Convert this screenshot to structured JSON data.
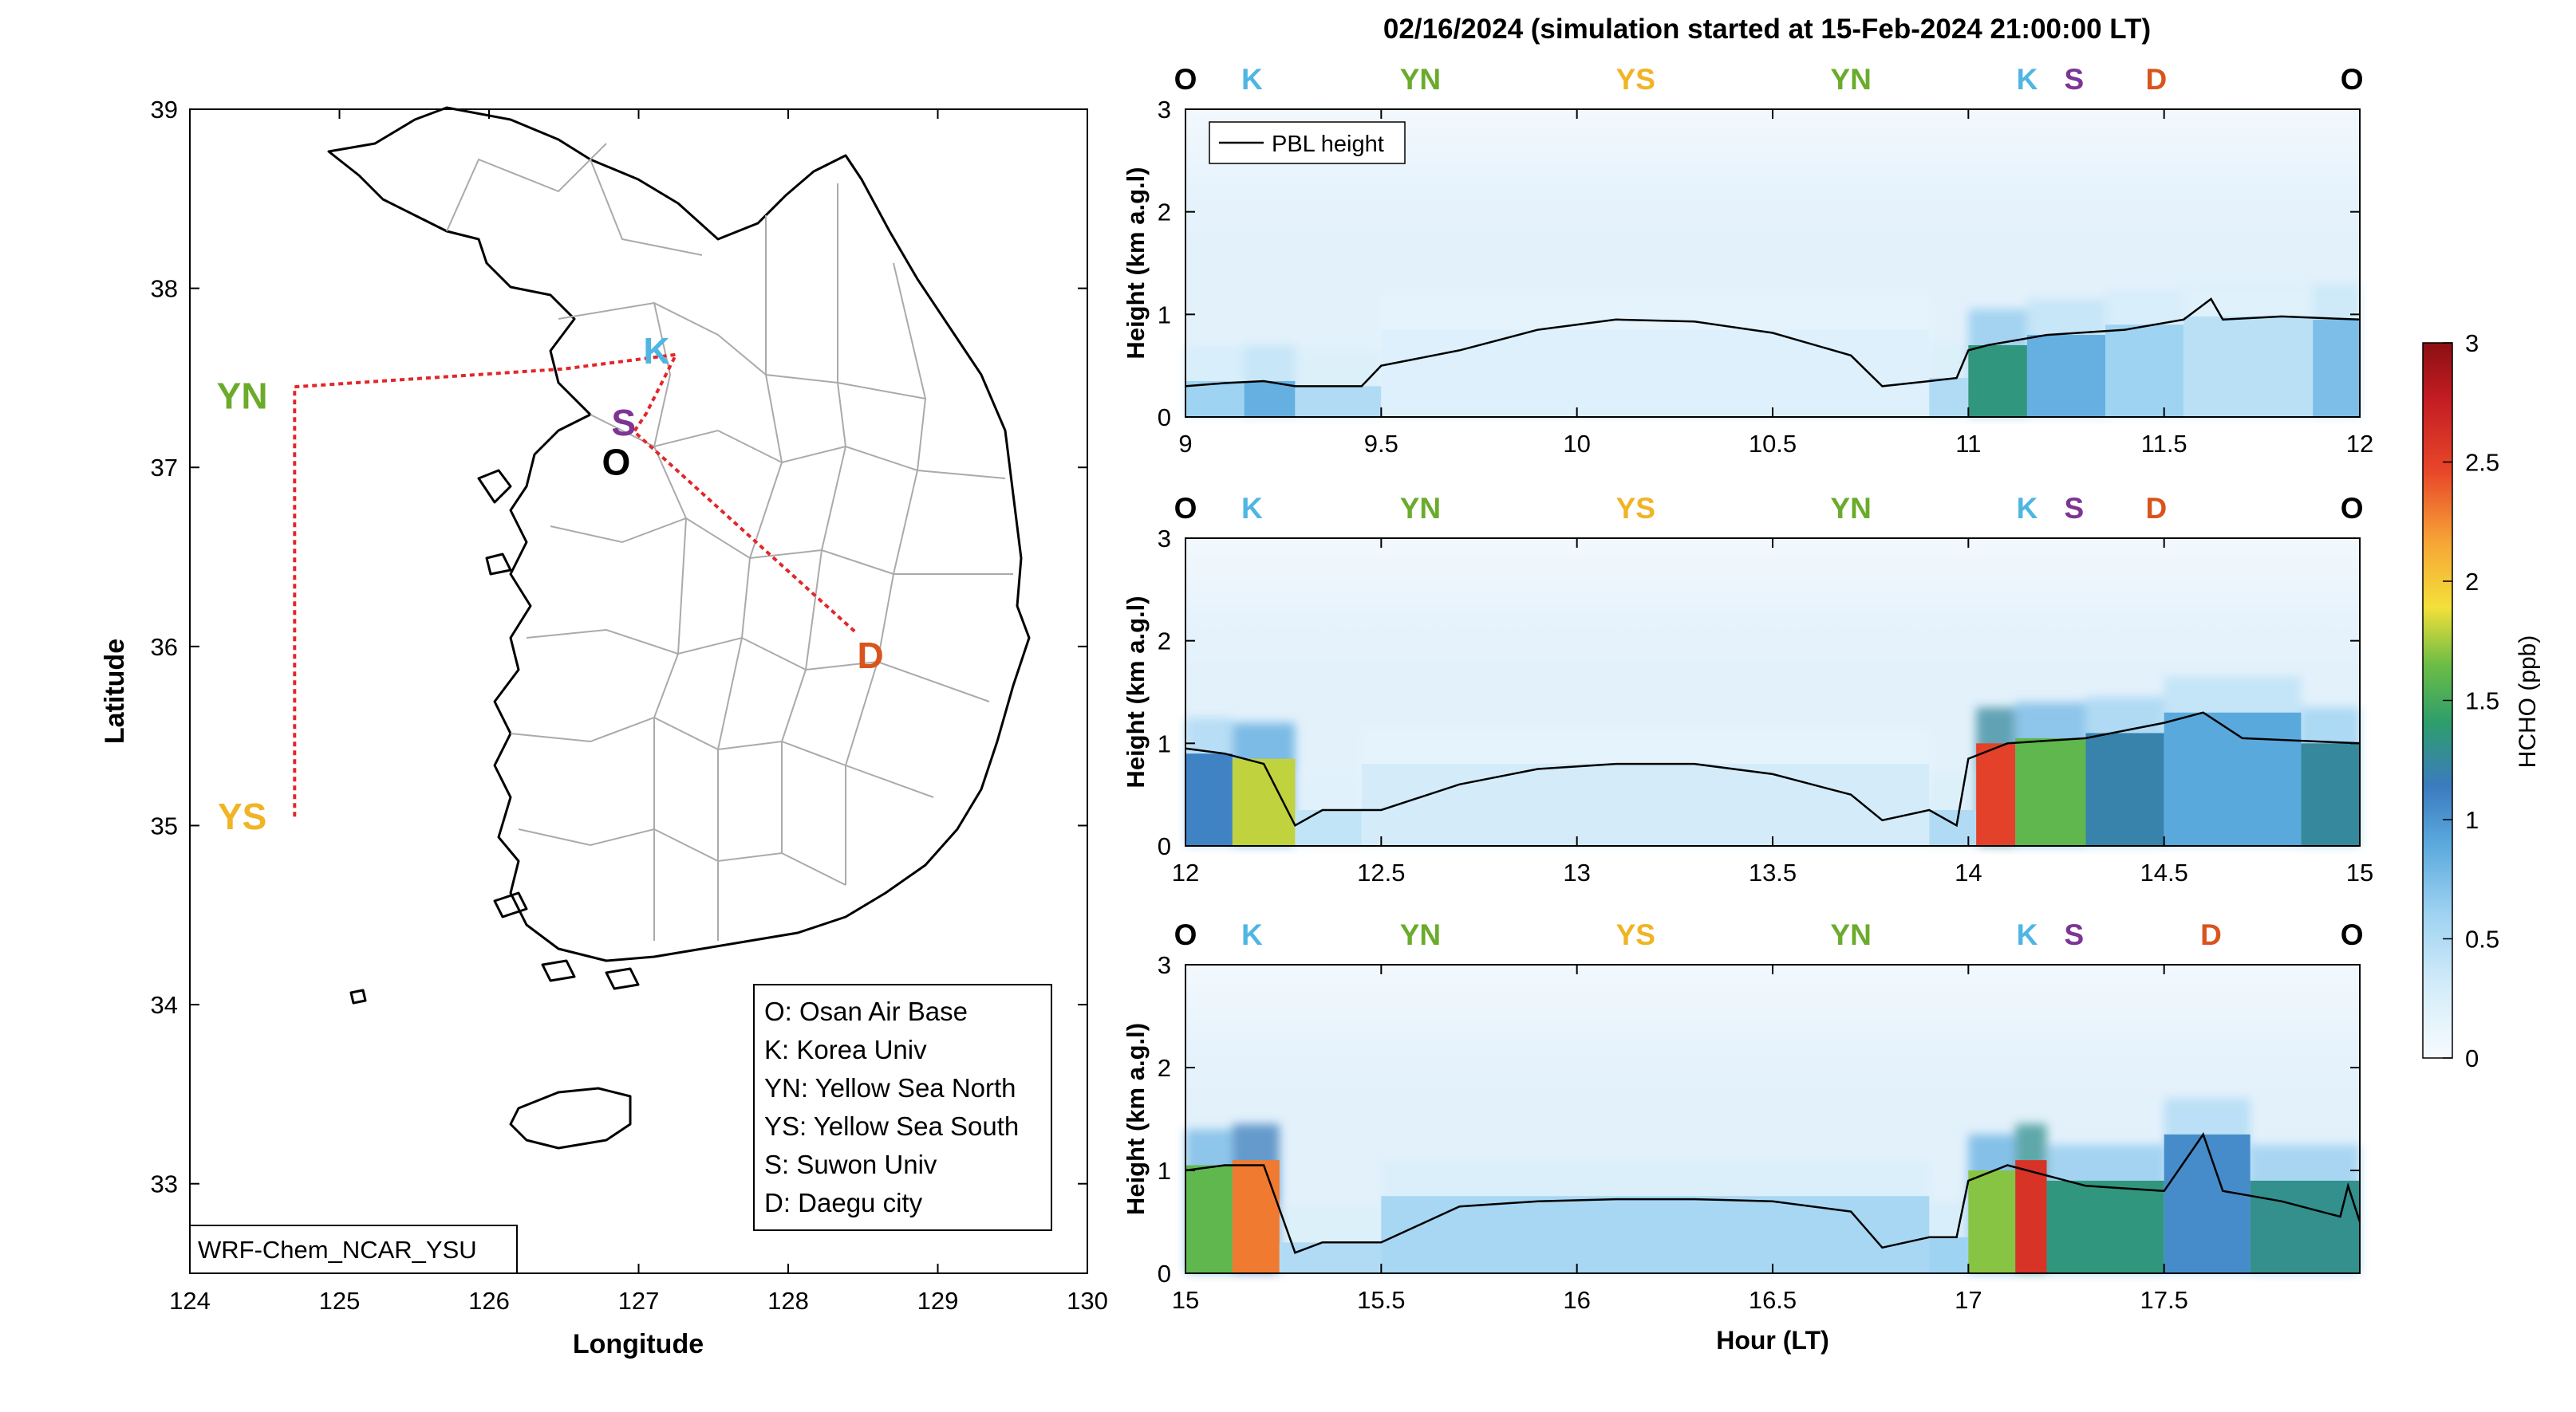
{
  "figure_title": "02/16/2024 (simulation started at 15-Feb-2024 21:00:00 LT)",
  "colors": {
    "O": "#000000",
    "K": "#4fb6e3",
    "YN": "#6bab2c",
    "YS": "#f0b425",
    "S": "#7d3594",
    "D": "#d9541c",
    "track": "#e3262a",
    "pbl": "#000000"
  },
  "map": {
    "xlabel": "Longitude",
    "ylabel": "Latitude",
    "xlim": [
      124,
      130
    ],
    "ylim": [
      32.5,
      39
    ],
    "xticks": [
      "124",
      "125",
      "126",
      "127",
      "128",
      "129",
      "130"
    ],
    "yticks": [
      "33",
      "34",
      "35",
      "36",
      "37",
      "38",
      "39"
    ],
    "model_label": "WRF-Chem_NCAR_YSU",
    "site_labels": [
      {
        "code": "YN",
        "lon": 124.35,
        "lat": 37.4
      },
      {
        "code": "YS",
        "lon": 124.35,
        "lat": 35.05
      },
      {
        "code": "K",
        "lon": 127.12,
        "lat": 37.65
      },
      {
        "code": "S",
        "lon": 126.9,
        "lat": 37.25
      },
      {
        "code": "O",
        "lon": 126.85,
        "lat": 37.03
      },
      {
        "code": "D",
        "lon": 128.55,
        "lat": 35.95
      }
    ],
    "flight_track": [
      [
        124.7,
        35.05
      ],
      [
        124.7,
        37.45
      ],
      [
        126.5,
        37.55
      ],
      [
        127.25,
        37.63
      ],
      [
        127.05,
        37.3
      ],
      [
        126.97,
        37.2
      ],
      [
        128.45,
        36.08
      ]
    ],
    "legend": [
      "O: Osan Air Base",
      "K: Korea Univ",
      "YN: Yellow Sea North",
      "YS: Yellow Sea South",
      "S: Suwon Univ",
      "D: Daegu city"
    ]
  },
  "chart_data": [
    {
      "type": "heatmap",
      "xlabel": "",
      "ylabel": "Height (km a.g.l)",
      "xlim": [
        9,
        12
      ],
      "ylim": [
        0,
        3
      ],
      "xticks": [
        "9",
        "9.5",
        "10",
        "10.5",
        "11",
        "11.5",
        "12"
      ],
      "yticks": [
        "0",
        "1",
        "2",
        "3"
      ],
      "legend": "PBL height",
      "site_markers": [
        {
          "code": "O",
          "x": 9.0
        },
        {
          "code": "K",
          "x": 9.17
        },
        {
          "code": "YN",
          "x": 9.6
        },
        {
          "code": "YS",
          "x": 10.15
        },
        {
          "code": "YN",
          "x": 10.7
        },
        {
          "code": "K",
          "x": 11.15
        },
        {
          "code": "S",
          "x": 11.27
        },
        {
          "code": "D",
          "x": 11.48
        },
        {
          "code": "O",
          "x": 11.98
        }
      ],
      "pbl_height": [
        [
          9.0,
          0.3
        ],
        [
          9.1,
          0.33
        ],
        [
          9.2,
          0.35
        ],
        [
          9.28,
          0.3
        ],
        [
          9.45,
          0.3
        ],
        [
          9.5,
          0.5
        ],
        [
          9.7,
          0.65
        ],
        [
          9.9,
          0.85
        ],
        [
          10.1,
          0.95
        ],
        [
          10.3,
          0.93
        ],
        [
          10.5,
          0.82
        ],
        [
          10.7,
          0.6
        ],
        [
          10.78,
          0.3
        ],
        [
          10.9,
          0.35
        ],
        [
          10.97,
          0.38
        ],
        [
          11.0,
          0.65
        ],
        [
          11.05,
          0.7
        ],
        [
          11.2,
          0.8
        ],
        [
          11.4,
          0.85
        ],
        [
          11.55,
          0.95
        ],
        [
          11.62,
          1.15
        ],
        [
          11.65,
          0.95
        ],
        [
          11.8,
          0.98
        ],
        [
          12.0,
          0.95
        ]
      ],
      "hcho_columns": [
        {
          "x0": 9.0,
          "x1": 9.15,
          "hcho": 0.6,
          "top": 0.35
        },
        {
          "x0": 9.15,
          "x1": 9.28,
          "hcho": 0.85,
          "top": 0.35
        },
        {
          "x0": 9.28,
          "x1": 9.5,
          "hcho": 0.5,
          "top": 0.3
        },
        {
          "x0": 9.5,
          "x1": 10.9,
          "hcho": 0.22,
          "top": 0.85
        },
        {
          "x0": 10.9,
          "x1": 11.0,
          "hcho": 0.5,
          "top": 0.38
        },
        {
          "x0": 11.0,
          "x1": 11.15,
          "hcho": 1.35,
          "top": 0.7
        },
        {
          "x0": 11.15,
          "x1": 11.35,
          "hcho": 0.85,
          "top": 0.8
        },
        {
          "x0": 11.35,
          "x1": 11.55,
          "hcho": 0.6,
          "top": 0.9
        },
        {
          "x0": 11.55,
          "x1": 11.88,
          "hcho": 0.45,
          "top": 0.98
        },
        {
          "x0": 11.88,
          "x1": 12.0,
          "hcho": 0.75,
          "top": 0.95
        }
      ]
    },
    {
      "type": "heatmap",
      "xlabel": "",
      "ylabel": "Height (km a.g.l)",
      "xlim": [
        12,
        15
      ],
      "ylim": [
        0,
        3
      ],
      "xticks": [
        "12",
        "12.5",
        "13",
        "13.5",
        "14",
        "14.5",
        "15"
      ],
      "yticks": [
        "0",
        "1",
        "2",
        "3"
      ],
      "site_markers": [
        {
          "code": "O",
          "x": 12.0
        },
        {
          "code": "K",
          "x": 12.17
        },
        {
          "code": "YN",
          "x": 12.6
        },
        {
          "code": "YS",
          "x": 13.15
        },
        {
          "code": "YN",
          "x": 13.7
        },
        {
          "code": "K",
          "x": 14.15
        },
        {
          "code": "S",
          "x": 14.27
        },
        {
          "code": "D",
          "x": 14.48
        },
        {
          "code": "O",
          "x": 14.98
        }
      ],
      "pbl_height": [
        [
          12.0,
          0.95
        ],
        [
          12.1,
          0.9
        ],
        [
          12.2,
          0.8
        ],
        [
          12.28,
          0.2
        ],
        [
          12.35,
          0.35
        ],
        [
          12.5,
          0.35
        ],
        [
          12.7,
          0.6
        ],
        [
          12.9,
          0.75
        ],
        [
          13.1,
          0.8
        ],
        [
          13.3,
          0.8
        ],
        [
          13.5,
          0.7
        ],
        [
          13.7,
          0.5
        ],
        [
          13.78,
          0.25
        ],
        [
          13.9,
          0.35
        ],
        [
          13.97,
          0.2
        ],
        [
          14.0,
          0.85
        ],
        [
          14.1,
          1.0
        ],
        [
          14.3,
          1.05
        ],
        [
          14.5,
          1.2
        ],
        [
          14.6,
          1.3
        ],
        [
          14.7,
          1.05
        ],
        [
          15.0,
          1.0
        ]
      ],
      "hcho_columns": [
        {
          "x0": 12.0,
          "x1": 12.12,
          "hcho": 1.1,
          "top": 0.9
        },
        {
          "x0": 12.12,
          "x1": 12.28,
          "hcho": 1.8,
          "top": 0.85
        },
        {
          "x0": 12.28,
          "x1": 12.45,
          "hcho": 0.4,
          "top": 0.35
        },
        {
          "x0": 12.45,
          "x1": 13.9,
          "hcho": 0.3,
          "top": 0.8
        },
        {
          "x0": 13.9,
          "x1": 14.02,
          "hcho": 0.5,
          "top": 0.35
        },
        {
          "x0": 14.02,
          "x1": 14.12,
          "hcho": 2.5,
          "top": 1.0
        },
        {
          "x0": 14.12,
          "x1": 14.3,
          "hcho": 1.6,
          "top": 1.05
        },
        {
          "x0": 14.3,
          "x1": 14.5,
          "hcho": 1.2,
          "top": 1.1
        },
        {
          "x0": 14.5,
          "x1": 14.85,
          "hcho": 0.9,
          "top": 1.3
        },
        {
          "x0": 14.85,
          "x1": 15.0,
          "hcho": 1.25,
          "top": 1.0
        }
      ]
    },
    {
      "type": "heatmap",
      "xlabel": "Hour (LT)",
      "ylabel": "Height (km a.g.l)",
      "xlim": [
        15,
        18
      ],
      "ylim": [
        0,
        3
      ],
      "xticks": [
        "15",
        "15.5",
        "16",
        "16.5",
        "17",
        "17.5"
      ],
      "yticks": [
        "0",
        "1",
        "2",
        "3"
      ],
      "site_markers": [
        {
          "code": "O",
          "x": 15.0
        },
        {
          "code": "K",
          "x": 15.17
        },
        {
          "code": "YN",
          "x": 15.6
        },
        {
          "code": "YS",
          "x": 16.15
        },
        {
          "code": "YN",
          "x": 16.7
        },
        {
          "code": "K",
          "x": 17.15
        },
        {
          "code": "S",
          "x": 17.27
        },
        {
          "code": "D",
          "x": 17.62
        },
        {
          "code": "O",
          "x": 17.98
        }
      ],
      "pbl_height": [
        [
          15.0,
          1.0
        ],
        [
          15.1,
          1.05
        ],
        [
          15.2,
          1.05
        ],
        [
          15.28,
          0.2
        ],
        [
          15.35,
          0.3
        ],
        [
          15.5,
          0.3
        ],
        [
          15.7,
          0.65
        ],
        [
          15.9,
          0.7
        ],
        [
          16.1,
          0.72
        ],
        [
          16.3,
          0.72
        ],
        [
          16.5,
          0.7
        ],
        [
          16.7,
          0.6
        ],
        [
          16.78,
          0.25
        ],
        [
          16.9,
          0.35
        ],
        [
          16.97,
          0.35
        ],
        [
          17.0,
          0.9
        ],
        [
          17.1,
          1.05
        ],
        [
          17.3,
          0.85
        ],
        [
          17.5,
          0.8
        ],
        [
          17.6,
          1.35
        ],
        [
          17.65,
          0.8
        ],
        [
          17.8,
          0.7
        ],
        [
          17.95,
          0.55
        ],
        [
          17.97,
          0.85
        ],
        [
          18.0,
          0.5
        ]
      ],
      "hcho_columns": [
        {
          "x0": 15.0,
          "x1": 15.12,
          "hcho": 1.6,
          "top": 1.05
        },
        {
          "x0": 15.12,
          "x1": 15.24,
          "hcho": 2.3,
          "top": 1.1
        },
        {
          "x0": 15.24,
          "x1": 15.5,
          "hcho": 0.5,
          "top": 0.3
        },
        {
          "x0": 15.5,
          "x1": 16.9,
          "hcho": 0.55,
          "top": 0.75
        },
        {
          "x0": 16.9,
          "x1": 17.0,
          "hcho": 0.6,
          "top": 0.35
        },
        {
          "x0": 17.0,
          "x1": 17.12,
          "hcho": 1.7,
          "top": 1.0
        },
        {
          "x0": 17.12,
          "x1": 17.2,
          "hcho": 2.6,
          "top": 1.1
        },
        {
          "x0": 17.2,
          "x1": 17.5,
          "hcho": 1.35,
          "top": 0.9
        },
        {
          "x0": 17.5,
          "x1": 17.72,
          "hcho": 1.05,
          "top": 1.35
        },
        {
          "x0": 17.72,
          "x1": 18.0,
          "hcho": 1.3,
          "top": 0.9
        }
      ]
    }
  ],
  "colorbar": {
    "label": "HCHO (ppb)",
    "range": [
      0,
      3
    ],
    "ticks": [
      "0",
      "0.5",
      "1",
      "1.5",
      "2",
      "2.5",
      "3"
    ]
  }
}
